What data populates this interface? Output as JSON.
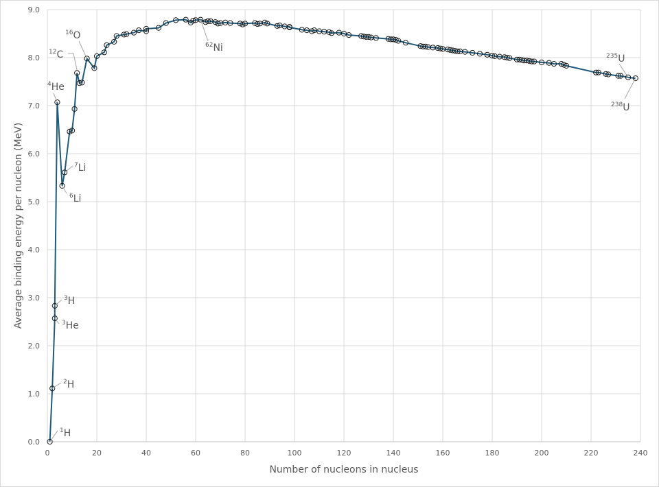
{
  "chart_data": {
    "type": "line",
    "x_label": "Number of nucleons in nucleus",
    "y_label": "Average binding energy per nucleon (MeV)",
    "color": "#1f5a7a",
    "marker_color": "#1a1a1a",
    "grid": true,
    "xlim": [
      0,
      240
    ],
    "ylim": [
      0,
      9
    ],
    "xticks": [
      0,
      20,
      40,
      60,
      80,
      100,
      120,
      140,
      160,
      180,
      200,
      220,
      240
    ],
    "yticks": [
      {
        "value": 0,
        "label": "0.0"
      },
      {
        "value": 1,
        "label": "1.0"
      },
      {
        "value": 2,
        "label": "2.0"
      },
      {
        "value": 3,
        "label": "3.0"
      },
      {
        "value": 4,
        "label": "4.0"
      },
      {
        "value": 5,
        "label": "5.0"
      },
      {
        "value": 6,
        "label": "6.0"
      },
      {
        "value": 7,
        "label": "7.0"
      },
      {
        "value": 8,
        "label": "8.0"
      },
      {
        "value": 9,
        "label": "9.0"
      }
    ],
    "x": [
      1,
      2,
      3,
      3,
      4,
      6,
      7,
      9,
      10,
      11,
      12,
      13,
      14,
      16,
      19,
      20,
      23,
      24,
      27,
      28,
      31,
      32,
      35,
      37,
      40,
      40,
      45,
      48,
      52,
      56,
      58,
      59,
      60,
      62,
      64,
      65,
      66,
      68,
      69,
      70,
      72,
      74,
      78,
      79,
      80,
      84,
      85,
      86,
      88,
      89,
      93,
      94,
      96,
      98,
      98,
      103,
      105,
      107,
      108,
      110,
      112,
      114,
      115,
      118,
      120,
      122,
      127,
      128,
      129,
      130,
      131,
      133,
      138,
      139,
      140,
      141,
      142,
      145,
      151,
      152,
      153,
      154,
      156,
      158,
      159,
      160,
      162,
      163,
      164,
      165,
      166,
      167,
      169,
      172,
      175,
      178,
      180,
      181,
      183,
      185,
      186,
      187,
      190,
      191,
      192,
      193,
      194,
      195,
      196,
      197,
      200,
      203,
      205,
      208,
      209,
      210,
      222,
      223,
      226,
      227,
      231,
      232,
      235,
      238
    ],
    "values": [
      0,
      1.11,
      2.57,
      2.83,
      7.07,
      5.33,
      5.61,
      6.46,
      6.48,
      6.93,
      7.68,
      7.47,
      7.48,
      7.98,
      7.78,
      8.03,
      8.11,
      8.26,
      8.33,
      8.45,
      8.48,
      8.49,
      8.52,
      8.57,
      8.55,
      8.6,
      8.62,
      8.72,
      8.78,
      8.79,
      8.73,
      8.77,
      8.78,
      8.79,
      8.74,
      8.76,
      8.76,
      8.74,
      8.71,
      8.72,
      8.73,
      8.72,
      8.71,
      8.69,
      8.71,
      8.72,
      8.7,
      8.71,
      8.73,
      8.71,
      8.66,
      8.67,
      8.65,
      8.64,
      8.63,
      8.58,
      8.57,
      8.55,
      8.57,
      8.55,
      8.54,
      8.53,
      8.51,
      8.52,
      8.5,
      8.47,
      8.45,
      8.44,
      8.43,
      8.43,
      8.42,
      8.41,
      8.39,
      8.38,
      8.38,
      8.37,
      8.35,
      8.31,
      8.24,
      8.23,
      8.23,
      8.22,
      8.21,
      8.2,
      8.19,
      8.18,
      8.17,
      8.16,
      8.15,
      8.14,
      8.13,
      8.13,
      8.12,
      8.1,
      8.08,
      8.06,
      8.04,
      8.03,
      8.02,
      8.01,
      8.0,
      7.99,
      7.96,
      7.96,
      7.95,
      7.94,
      7.94,
      7.93,
      7.92,
      7.92,
      7.9,
      7.89,
      7.87,
      7.87,
      7.85,
      7.83,
      7.69,
      7.69,
      7.66,
      7.65,
      7.62,
      7.62,
      7.59,
      7.57
    ],
    "annotations": [
      {
        "mass": "1",
        "symbol": "H"
      },
      {
        "mass": "2",
        "symbol": "H"
      },
      {
        "mass": "3",
        "symbol": "H"
      },
      {
        "mass": "3",
        "symbol": "He"
      },
      {
        "mass": "4",
        "symbol": "He"
      },
      {
        "mass": "6",
        "symbol": "Li"
      },
      {
        "mass": "7",
        "symbol": "Li"
      },
      {
        "mass": "12",
        "symbol": "C"
      },
      {
        "mass": "16",
        "symbol": "O"
      },
      {
        "mass": "62",
        "symbol": "Ni"
      },
      {
        "mass": "235",
        "symbol": "U"
      },
      {
        "mass": "238",
        "symbol": "U"
      }
    ]
  }
}
